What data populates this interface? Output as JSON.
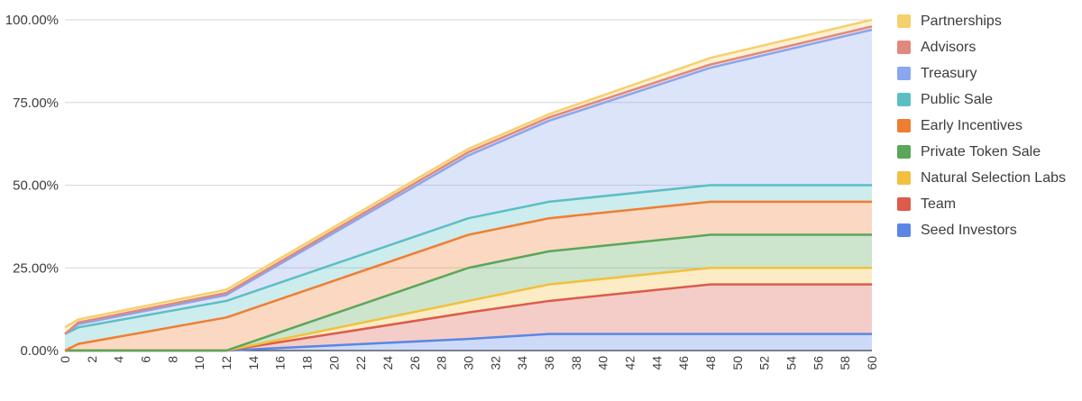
{
  "chart_data": {
    "type": "area",
    "stacked": true,
    "title": "",
    "xlabel": "",
    "ylabel": "",
    "ylim": [
      0,
      100
    ],
    "yticks": [
      "0.00%",
      "25.00%",
      "50.00%",
      "75.00%",
      "100.00%"
    ],
    "xticks": [
      "0",
      "2",
      "4",
      "6",
      "8",
      "10",
      "12",
      "14",
      "16",
      "18",
      "20",
      "22",
      "24",
      "26",
      "28",
      "30",
      "32",
      "34",
      "36",
      "38",
      "40",
      "42",
      "44",
      "46",
      "48",
      "50",
      "52",
      "54",
      "56",
      "58",
      "60"
    ],
    "legend_position": "right",
    "grid": true,
    "x": [
      0,
      1,
      12,
      30,
      36,
      48,
      60
    ],
    "series": [
      {
        "name": "Seed Investors",
        "color": "#5b86e5",
        "values": [
          0,
          0,
          0,
          3.5,
          5,
          5,
          5
        ]
      },
      {
        "name": "Team",
        "color": "#dc5b4a",
        "values": [
          0,
          0,
          0,
          8,
          10,
          15,
          15
        ]
      },
      {
        "name": "Natural Selection Labs",
        "color": "#f2c03e",
        "values": [
          0,
          0,
          0,
          3.5,
          5,
          5,
          5
        ]
      },
      {
        "name": "Private Token Sale",
        "color": "#5aa65a",
        "values": [
          0,
          0,
          0,
          10,
          10,
          10,
          10
        ]
      },
      {
        "name": "Early Incentives",
        "color": "#ee7e32",
        "values": [
          0,
          2,
          10,
          10,
          10,
          10,
          10
        ]
      },
      {
        "name": "Public Sale",
        "color": "#5bbfc2",
        "values": [
          5,
          5,
          5,
          5,
          5,
          5,
          5
        ]
      },
      {
        "name": "Treasury",
        "color": "#8aa6ee",
        "values": [
          0,
          1,
          1.8,
          19,
          24.5,
          35.5,
          47
        ]
      },
      {
        "name": "Advisors",
        "color": "#e0887d",
        "values": [
          0,
          0.5,
          0.6,
          1,
          1,
          1,
          1
        ]
      },
      {
        "name": "Partnerships",
        "color": "#f5d06e",
        "values": [
          2,
          0.9,
          1,
          1,
          1,
          2,
          2
        ]
      }
    ],
    "legend_order": [
      "Partnerships",
      "Advisors",
      "Treasury",
      "Public Sale",
      "Early Incentives",
      "Private Token Sale",
      "Natural Selection Labs",
      "Team",
      "Seed Investors"
    ]
  }
}
